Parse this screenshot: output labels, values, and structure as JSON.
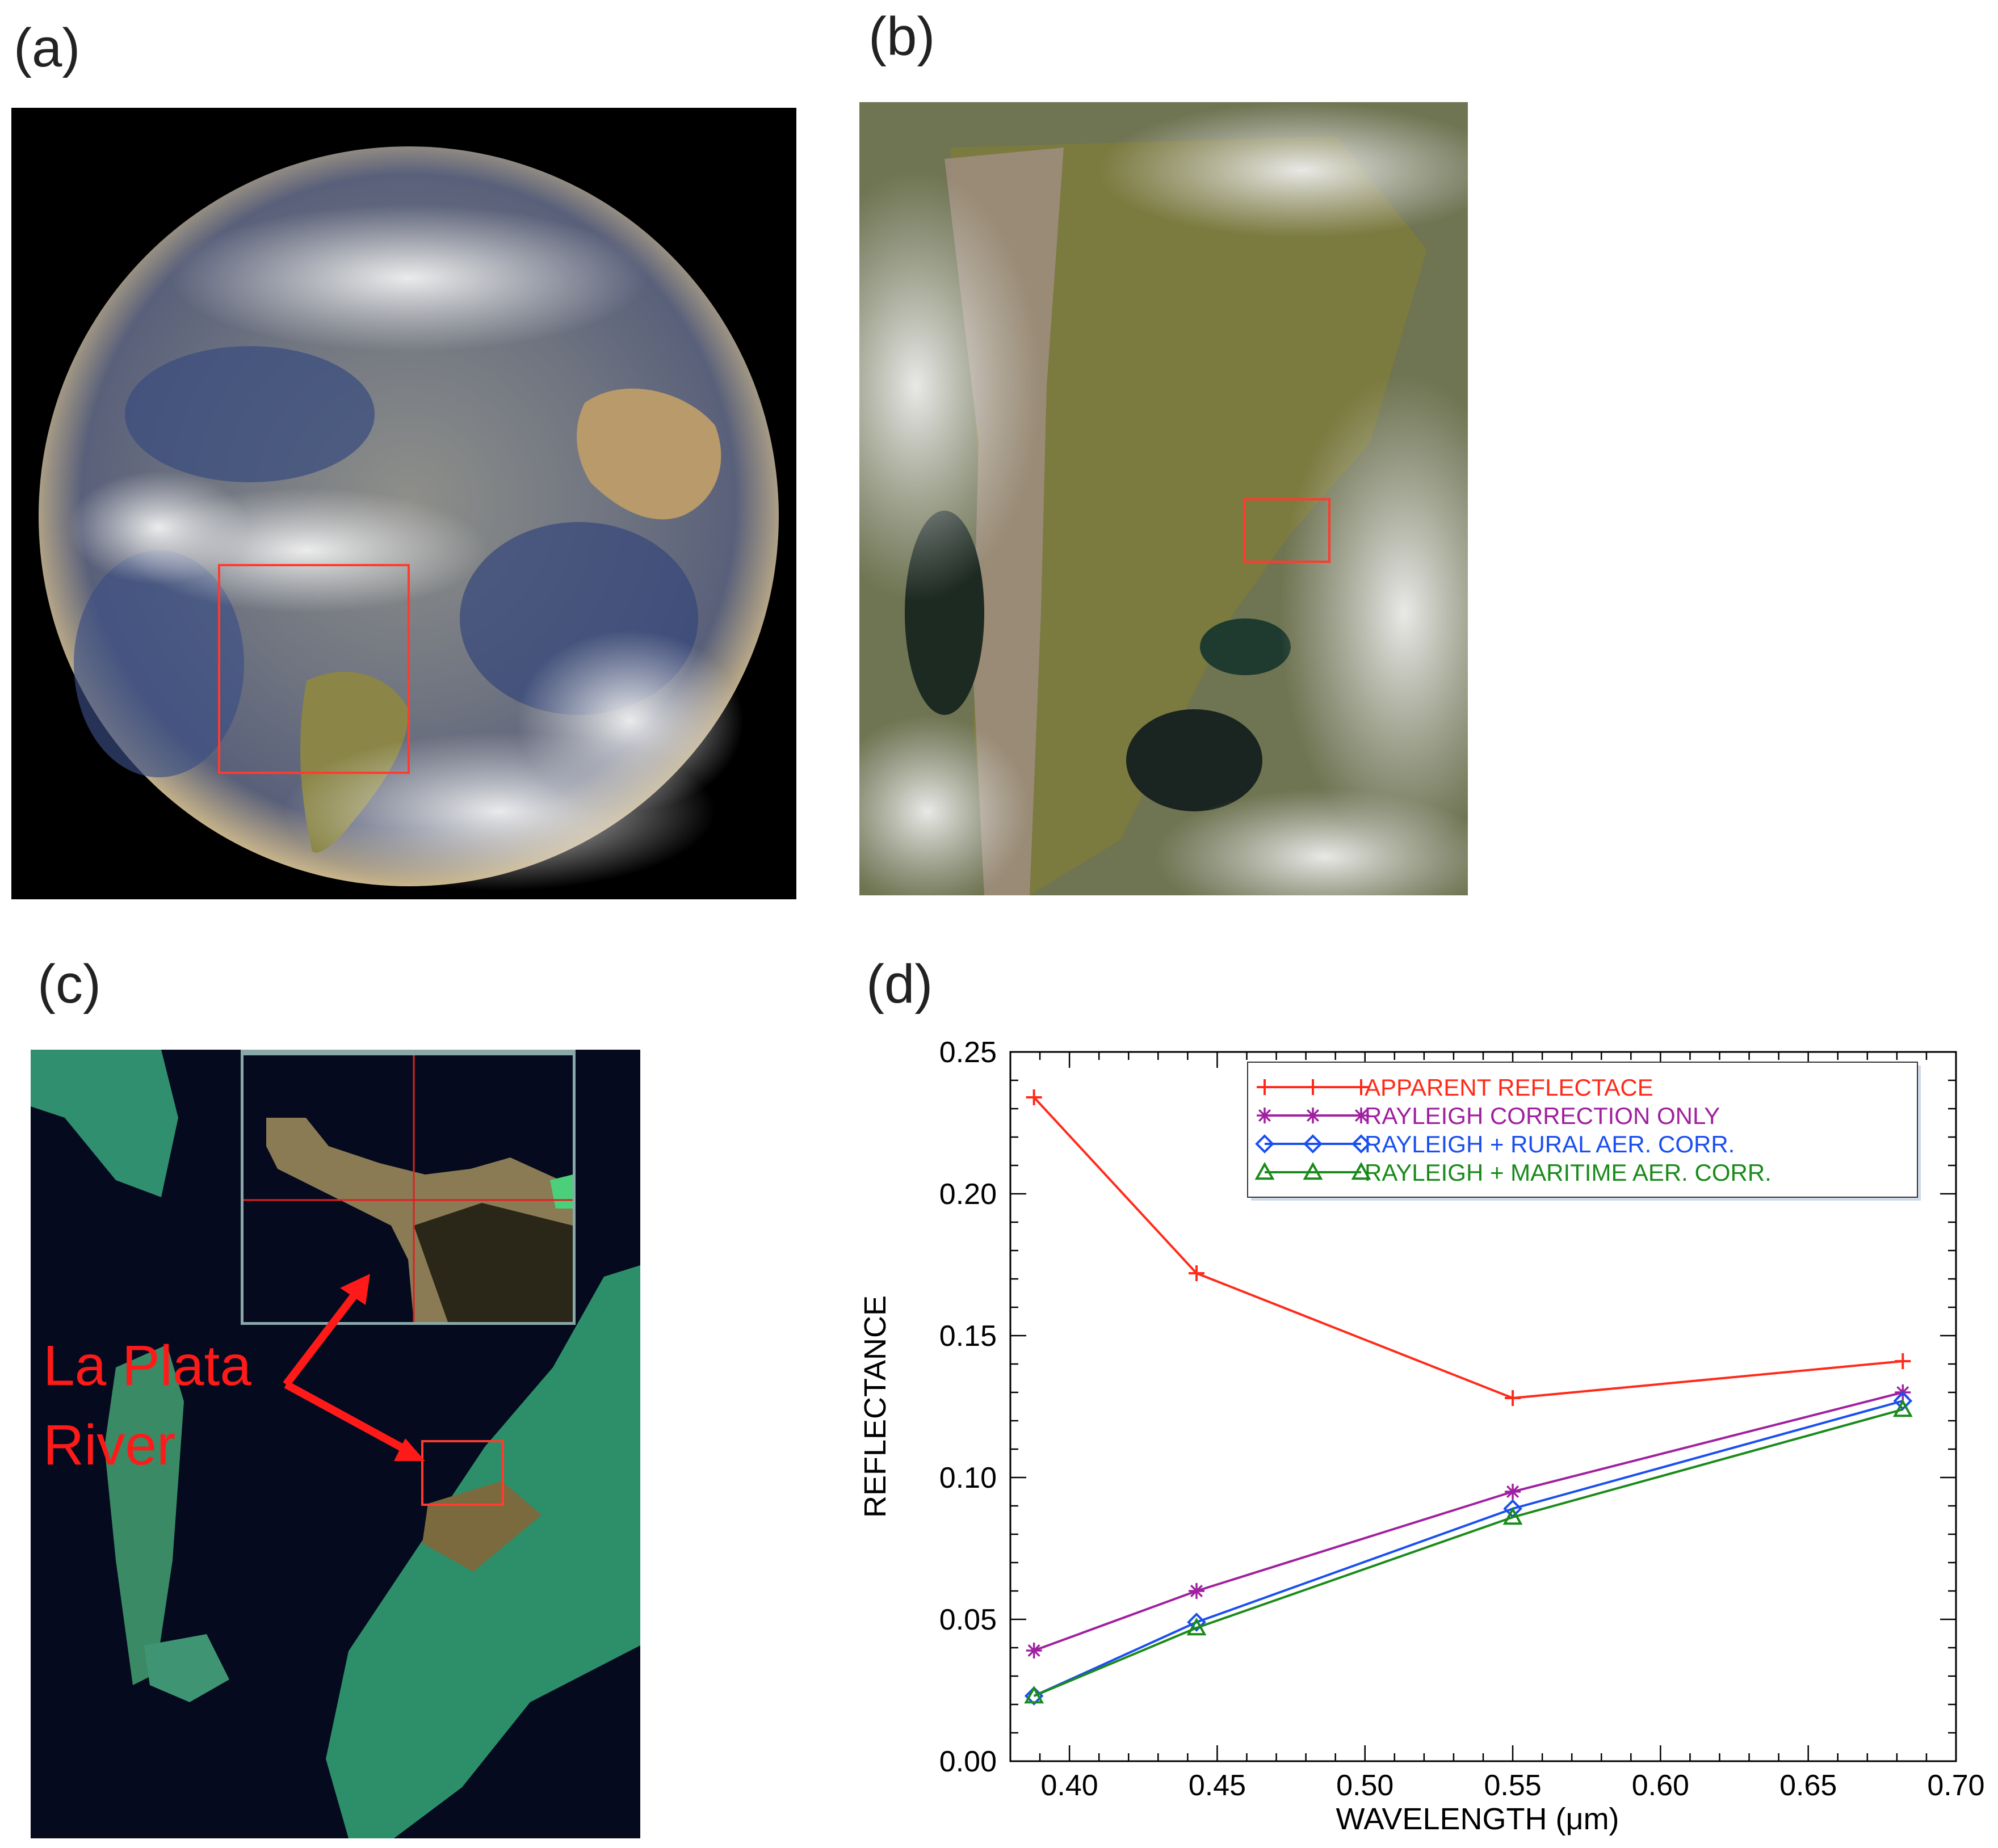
{
  "panels": {
    "a": {
      "label": "(a)"
    },
    "b": {
      "label": "(b)"
    },
    "c": {
      "label": "(c)",
      "annotation_line1": "La Plata",
      "annotation_line2": "River"
    },
    "d": {
      "label": "(d)"
    }
  },
  "colors": {
    "apparent": "#ff2a1a",
    "rayleigh_only": "#a020a0",
    "rural": "#1a4ff0",
    "maritime": "#1a8a1a",
    "highlight_box": "#ff3b2f",
    "annotation": "#ff1a1a"
  },
  "chart_data": {
    "type": "line",
    "title": "",
    "xlabel": "WAVELENGTH (μm)",
    "ylabel": "REFLECTANCE",
    "xlim": [
      0.38,
      0.7
    ],
    "ylim": [
      0.0,
      0.25
    ],
    "x_ticks": [
      "0.40",
      "0.45",
      "0.50",
      "0.55",
      "0.60",
      "0.65",
      "0.70"
    ],
    "y_ticks": [
      "0.00",
      "0.05",
      "0.10",
      "0.15",
      "0.20",
      "0.25"
    ],
    "grid": false,
    "legend_position": "top-right",
    "x": [
      0.388,
      0.443,
      0.55,
      0.682
    ],
    "series": [
      {
        "name": "APPARENT REFLECTACE",
        "marker": "plus",
        "color": "#ff2a1a",
        "values": [
          0.234,
          0.172,
          0.128,
          0.141
        ]
      },
      {
        "name": "RAYLEIGH CORRECTION ONLY",
        "marker": "star",
        "color": "#a020a0",
        "values": [
          0.039,
          0.06,
          0.095,
          0.13
        ]
      },
      {
        "name": "RAYLEIGH + RURAL AER. CORR.",
        "marker": "diamond",
        "color": "#1a4ff0",
        "values": [
          0.023,
          0.049,
          0.089,
          0.127
        ]
      },
      {
        "name": "RAYLEIGH + MARITIME AER. CORR.",
        "marker": "triangle",
        "color": "#1a8a1a",
        "values": [
          0.023,
          0.047,
          0.086,
          0.124
        ]
      }
    ]
  }
}
